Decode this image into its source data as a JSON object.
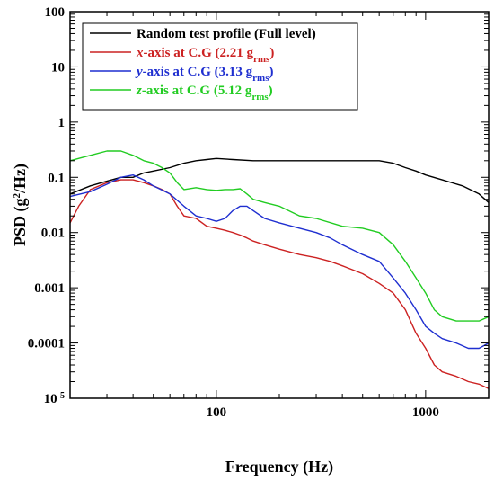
{
  "chart_data": {
    "type": "line",
    "xlabel": "Frequency (Hz)",
    "ylabel_main": "PSD (g",
    "ylabel_sup": "2",
    "ylabel_end": "/Hz)",
    "x_scale": "log",
    "y_scale": "log",
    "xlim": [
      20,
      2000
    ],
    "ylim": [
      1e-05,
      100
    ],
    "x_ticks": [
      {
        "value": 100,
        "label": "100"
      },
      {
        "value": 1000,
        "label": "1000"
      }
    ],
    "y_ticks": [
      {
        "value": 100,
        "label": "100"
      },
      {
        "value": 10,
        "label": "10"
      },
      {
        "value": 1,
        "label": "1"
      },
      {
        "value": 0.1,
        "label": "0.1"
      },
      {
        "value": 0.01,
        "label": "0.01"
      },
      {
        "value": 0.001,
        "label": "0.001"
      },
      {
        "value": 0.0001,
        "label": "0.0001"
      },
      {
        "value": 1e-05,
        "label_base": "10",
        "label_exp": "-5"
      }
    ],
    "grid": false,
    "legend_position": "top-left",
    "series": [
      {
        "name": "Random test profile (Full level)",
        "legend": {
          "prefix": "",
          "axis": "",
          "main": "Random test profile (Full level)",
          "sub": "",
          "end": ""
        },
        "color": "#000000",
        "x": [
          20,
          25,
          30,
          35,
          40,
          45,
          50,
          60,
          70,
          80,
          90,
          100,
          120,
          150,
          200,
          250,
          300,
          400,
          500,
          600,
          700,
          800,
          900,
          1000,
          1200,
          1500,
          1800,
          2000
        ],
        "y": [
          0.05,
          0.07,
          0.085,
          0.1,
          0.1,
          0.12,
          0.13,
          0.15,
          0.18,
          0.2,
          0.21,
          0.22,
          0.21,
          0.2,
          0.2,
          0.2,
          0.2,
          0.2,
          0.2,
          0.2,
          0.18,
          0.15,
          0.13,
          0.11,
          0.09,
          0.07,
          0.05,
          0.035
        ]
      },
      {
        "name": "x-axis at C.G (2.21 grms)",
        "legend": {
          "prefix": "",
          "axis": "x",
          "main": "-axis at C.G (2.21 g",
          "sub": "rms",
          "end": ")"
        },
        "color": "#cc2222",
        "x": [
          20,
          22,
          25,
          30,
          35,
          40,
          45,
          50,
          55,
          60,
          65,
          70,
          80,
          90,
          100,
          110,
          120,
          130,
          140,
          150,
          170,
          200,
          250,
          300,
          350,
          400,
          500,
          600,
          700,
          800,
          900,
          1000,
          1100,
          1200,
          1400,
          1600,
          1800,
          2000
        ],
        "y": [
          0.015,
          0.03,
          0.06,
          0.08,
          0.09,
          0.09,
          0.08,
          0.07,
          0.06,
          0.05,
          0.03,
          0.02,
          0.018,
          0.013,
          0.012,
          0.011,
          0.01,
          0.009,
          0.008,
          0.007,
          0.006,
          0.005,
          0.004,
          0.0035,
          0.003,
          0.0025,
          0.0018,
          0.0012,
          0.0008,
          0.0004,
          0.00015,
          8e-05,
          4e-05,
          3e-05,
          2.5e-05,
          2e-05,
          1.8e-05,
          1.5e-05
        ]
      },
      {
        "name": "y-axis at C.G (3.13 grms)",
        "legend": {
          "prefix": "",
          "axis": "y",
          "main": "-axis at C.G (3.13 g",
          "sub": "rms",
          "end": ")"
        },
        "color": "#1f2fd0",
        "x": [
          20,
          25,
          30,
          35,
          40,
          45,
          50,
          60,
          70,
          80,
          90,
          100,
          110,
          120,
          130,
          140,
          150,
          170,
          200,
          250,
          300,
          350,
          400,
          500,
          600,
          700,
          800,
          900,
          1000,
          1100,
          1200,
          1400,
          1600,
          1800,
          2000
        ],
        "y": [
          0.045,
          0.055,
          0.075,
          0.1,
          0.11,
          0.09,
          0.07,
          0.05,
          0.03,
          0.02,
          0.018,
          0.016,
          0.018,
          0.025,
          0.03,
          0.03,
          0.025,
          0.018,
          0.015,
          0.012,
          0.01,
          0.008,
          0.006,
          0.004,
          0.003,
          0.0015,
          0.0008,
          0.0004,
          0.0002,
          0.00015,
          0.00012,
          0.0001,
          8e-05,
          8e-05,
          0.0001
        ]
      },
      {
        "name": "z-axis at C.G (5.12 grms)",
        "legend": {
          "prefix": "",
          "axis": "z",
          "main": "-axis at C.G (5.12 g",
          "sub": "rms",
          "end": ")"
        },
        "color": "#22cc22",
        "x": [
          20,
          25,
          30,
          35,
          40,
          45,
          50,
          55,
          60,
          65,
          70,
          80,
          90,
          100,
          110,
          120,
          130,
          140,
          150,
          170,
          200,
          250,
          300,
          400,
          500,
          600,
          700,
          800,
          900,
          1000,
          1100,
          1200,
          1400,
          1600,
          1800,
          2000
        ],
        "y": [
          0.2,
          0.25,
          0.3,
          0.3,
          0.25,
          0.2,
          0.18,
          0.15,
          0.12,
          0.08,
          0.06,
          0.065,
          0.06,
          0.058,
          0.06,
          0.06,
          0.062,
          0.05,
          0.04,
          0.035,
          0.03,
          0.02,
          0.018,
          0.013,
          0.012,
          0.01,
          0.006,
          0.003,
          0.0015,
          0.0008,
          0.0004,
          0.0003,
          0.00025,
          0.00025,
          0.00025,
          0.0003
        ]
      }
    ]
  }
}
